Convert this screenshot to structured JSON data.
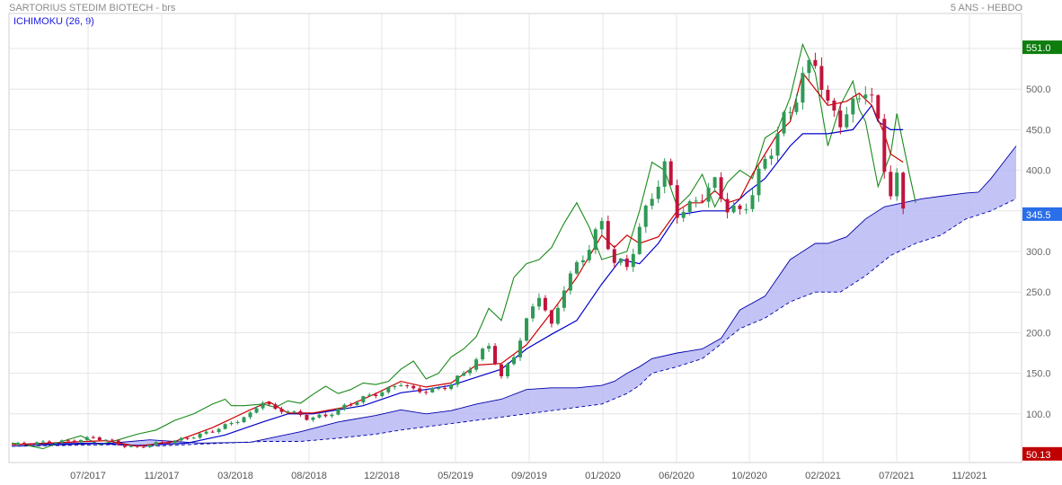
{
  "header": {
    "title": "SARTORIUS STEDIM BIOTECH - brs",
    "period": "5 ANS - HEBDO",
    "indicator": "ICHIMOKU (26, 9)"
  },
  "colors": {
    "tenkan": "#cc0000",
    "kijun": "#0000cc",
    "chikou": "#1a8a1a",
    "cloud": "#b8b8f5",
    "cloud_edge": "#0000aa",
    "candle_up": "#2e9a56",
    "candle_down": "#c0143c",
    "tag_high": "#0e7d0e",
    "tag_last": "#2a6ee8",
    "tag_low": "#c00000",
    "grid": "#e4e4e4"
  },
  "chart_data": {
    "type": "candlestick",
    "x_axis_labels": [
      "07/2017",
      "11/2017",
      "03/2018",
      "08/2018",
      "12/2018",
      "05/2019",
      "09/2019",
      "01/2020",
      "06/2020",
      "10/2020",
      "02/2021",
      "07/2021",
      "11/2021"
    ],
    "y_axis_labels": [
      "100.0",
      "150.0",
      "200.0",
      "250.0",
      "300.0",
      "350.0",
      "400.0",
      "450.0",
      "500.0"
    ],
    "ylim": [
      40,
      560
    ],
    "price_tags": [
      {
        "label": "551.0",
        "value": 551,
        "role": "high"
      },
      {
        "label": "345.5",
        "value": 345.5,
        "role": "last"
      },
      {
        "label": "50.13",
        "value": 50.13,
        "role": "low"
      }
    ],
    "price_close_path": [
      [
        0,
        62
      ],
      [
        5,
        64
      ],
      [
        10,
        67
      ],
      [
        13,
        72
      ],
      [
        16,
        66
      ],
      [
        18,
        60
      ],
      [
        20,
        58
      ],
      [
        23,
        63
      ],
      [
        26,
        67
      ],
      [
        29,
        73
      ],
      [
        32,
        80
      ],
      [
        35,
        88
      ],
      [
        38,
        98
      ],
      [
        40,
        115
      ],
      [
        42,
        104
      ],
      [
        44,
        105
      ],
      [
        47,
        96
      ],
      [
        50,
        98
      ],
      [
        53,
        108
      ],
      [
        56,
        118
      ],
      [
        60,
        130
      ],
      [
        62,
        140
      ],
      [
        64,
        130
      ],
      [
        66,
        130
      ],
      [
        68,
        130
      ],
      [
        70,
        136
      ],
      [
        72,
        148
      ],
      [
        74,
        165
      ],
      [
        76,
        185
      ],
      [
        78,
        145
      ],
      [
        80,
        175
      ],
      [
        82,
        215
      ],
      [
        84,
        250
      ],
      [
        86,
        205
      ],
      [
        88,
        255
      ],
      [
        90,
        278
      ],
      [
        92,
        305
      ],
      [
        94,
        335
      ],
      [
        96,
        290
      ],
      [
        98,
        285
      ],
      [
        100,
        330
      ],
      [
        102,
        370
      ],
      [
        104,
        400
      ],
      [
        106,
        345
      ],
      [
        108,
        350
      ],
      [
        110,
        370
      ],
      [
        112,
        385
      ],
      [
        114,
        360
      ],
      [
        116,
        350
      ],
      [
        118,
        375
      ],
      [
        120,
        410
      ],
      [
        122,
        440
      ],
      [
        124,
        470
      ],
      [
        126,
        510
      ],
      [
        128,
        540
      ],
      [
        130,
        480
      ],
      [
        132,
        470
      ],
      [
        134,
        480
      ],
      [
        136,
        505
      ],
      [
        137,
        485
      ],
      [
        138,
        450
      ],
      [
        139,
        400
      ],
      [
        140,
        370
      ],
      [
        141,
        385
      ],
      [
        142,
        345.5
      ]
    ],
    "tenkan_path": [
      [
        0,
        62
      ],
      [
        9,
        65
      ],
      [
        15,
        67
      ],
      [
        20,
        60
      ],
      [
        26,
        66
      ],
      [
        32,
        83
      ],
      [
        38,
        105
      ],
      [
        41,
        115
      ],
      [
        44,
        101
      ],
      [
        48,
        101
      ],
      [
        53,
        108
      ],
      [
        58,
        125
      ],
      [
        62,
        140
      ],
      [
        66,
        133
      ],
      [
        70,
        138
      ],
      [
        74,
        160
      ],
      [
        78,
        162
      ],
      [
        82,
        185
      ],
      [
        86,
        225
      ],
      [
        90,
        268
      ],
      [
        94,
        320
      ],
      [
        96,
        305
      ],
      [
        98,
        320
      ],
      [
        100,
        310
      ],
      [
        103,
        318
      ],
      [
        106,
        350
      ],
      [
        108,
        360
      ],
      [
        110,
        360
      ],
      [
        112,
        375
      ],
      [
        114,
        360
      ],
      [
        116,
        365
      ],
      [
        118,
        395
      ],
      [
        120,
        420
      ],
      [
        122,
        445
      ],
      [
        124,
        460
      ],
      [
        126,
        520
      ],
      [
        128,
        500
      ],
      [
        130,
        480
      ],
      [
        133,
        485
      ],
      [
        135,
        495
      ],
      [
        137,
        480
      ],
      [
        139,
        445
      ],
      [
        140,
        420
      ],
      [
        142,
        410
      ]
    ],
    "kijun_path": [
      [
        0,
        62
      ],
      [
        13,
        64
      ],
      [
        20,
        61
      ],
      [
        28,
        64
      ],
      [
        34,
        74
      ],
      [
        40,
        90
      ],
      [
        44,
        100
      ],
      [
        48,
        100
      ],
      [
        56,
        110
      ],
      [
        62,
        126
      ],
      [
        66,
        130
      ],
      [
        70,
        135
      ],
      [
        74,
        145
      ],
      [
        78,
        155
      ],
      [
        82,
        180
      ],
      [
        86,
        198
      ],
      [
        90,
        215
      ],
      [
        94,
        260
      ],
      [
        97,
        290
      ],
      [
        100,
        285
      ],
      [
        103,
        310
      ],
      [
        106,
        345
      ],
      [
        110,
        350
      ],
      [
        114,
        350
      ],
      [
        117,
        372
      ],
      [
        120,
        390
      ],
      [
        124,
        430
      ],
      [
        126,
        445
      ],
      [
        130,
        445
      ],
      [
        134,
        450
      ],
      [
        136,
        470
      ],
      [
        137,
        480
      ],
      [
        138,
        460
      ],
      [
        140,
        450
      ],
      [
        142,
        450
      ]
    ],
    "chikou_path": [
      [
        0,
        64
      ],
      [
        2,
        62
      ],
      [
        5,
        57
      ],
      [
        8,
        66
      ],
      [
        11,
        73
      ],
      [
        14,
        62
      ],
      [
        17,
        68
      ],
      [
        20,
        75
      ],
      [
        23,
        80
      ],
      [
        26,
        92
      ],
      [
        29,
        100
      ],
      [
        32,
        112
      ],
      [
        34,
        118
      ],
      [
        35,
        110
      ],
      [
        37,
        110
      ],
      [
        40,
        112
      ],
      [
        42,
        108
      ],
      [
        44,
        116
      ],
      [
        46,
        113
      ],
      [
        48,
        124
      ],
      [
        50,
        134
      ],
      [
        52,
        125
      ],
      [
        54,
        130
      ],
      [
        56,
        138
      ],
      [
        58,
        136
      ],
      [
        60,
        140
      ],
      [
        62,
        155
      ],
      [
        64,
        165
      ],
      [
        66,
        143
      ],
      [
        68,
        150
      ],
      [
        70,
        170
      ],
      [
        72,
        180
      ],
      [
        74,
        195
      ],
      [
        76,
        230
      ],
      [
        78,
        215
      ],
      [
        80,
        268
      ],
      [
        82,
        285
      ],
      [
        84,
        290
      ],
      [
        86,
        305
      ],
      [
        88,
        335
      ],
      [
        90,
        360
      ],
      [
        92,
        330
      ],
      [
        94,
        290
      ],
      [
        96,
        295
      ],
      [
        98,
        300
      ],
      [
        100,
        350
      ],
      [
        102,
        410
      ],
      [
        104,
        400
      ],
      [
        106,
        355
      ],
      [
        108,
        370
      ],
      [
        110,
        395
      ],
      [
        112,
        355
      ],
      [
        114,
        385
      ],
      [
        116,
        400
      ],
      [
        118,
        390
      ],
      [
        120,
        440
      ],
      [
        122,
        450
      ],
      [
        124,
        490
      ],
      [
        126,
        555
      ],
      [
        128,
        520
      ],
      [
        130,
        430
      ],
      [
        132,
        480
      ],
      [
        134,
        510
      ],
      [
        135,
        475
      ],
      [
        136,
        460
      ],
      [
        138,
        380
      ],
      [
        140,
        420
      ],
      [
        141,
        470
      ],
      [
        143,
        395
      ],
      [
        144,
        360
      ]
    ],
    "cloud_upper_path": [
      [
        0,
        60
      ],
      [
        16,
        64
      ],
      [
        22,
        68
      ],
      [
        30,
        64
      ],
      [
        38,
        65
      ],
      [
        46,
        78
      ],
      [
        52,
        90
      ],
      [
        58,
        98
      ],
      [
        62,
        105
      ],
      [
        66,
        100
      ],
      [
        70,
        104
      ],
      [
        74,
        112
      ],
      [
        78,
        118
      ],
      [
        82,
        130
      ],
      [
        86,
        132
      ],
      [
        90,
        132
      ],
      [
        94,
        135
      ],
      [
        96,
        140
      ],
      [
        98,
        150
      ],
      [
        100,
        158
      ],
      [
        102,
        168
      ],
      [
        106,
        175
      ],
      [
        110,
        180
      ],
      [
        113,
        193
      ],
      [
        116,
        228
      ],
      [
        120,
        245
      ],
      [
        124,
        290
      ],
      [
        128,
        310
      ],
      [
        130,
        310
      ],
      [
        133,
        318
      ],
      [
        136,
        340
      ],
      [
        139,
        355
      ],
      [
        142,
        360
      ],
      [
        145,
        365
      ],
      [
        148,
        368
      ],
      [
        152,
        372
      ],
      [
        154,
        373
      ],
      [
        156,
        390
      ],
      [
        158,
        410
      ],
      [
        160,
        430
      ]
    ],
    "cloud_lower_path": [
      [
        0,
        60
      ],
      [
        16,
        62
      ],
      [
        22,
        60
      ],
      [
        28,
        62
      ],
      [
        34,
        64
      ],
      [
        40,
        66
      ],
      [
        46,
        66
      ],
      [
        52,
        70
      ],
      [
        58,
        75
      ],
      [
        62,
        80
      ],
      [
        66,
        84
      ],
      [
        70,
        88
      ],
      [
        74,
        92
      ],
      [
        78,
        96
      ],
      [
        82,
        100
      ],
      [
        86,
        104
      ],
      [
        90,
        108
      ],
      [
        94,
        112
      ],
      [
        98,
        125
      ],
      [
        100,
        135
      ],
      [
        102,
        150
      ],
      [
        106,
        158
      ],
      [
        110,
        168
      ],
      [
        113,
        186
      ],
      [
        116,
        205
      ],
      [
        120,
        218
      ],
      [
        124,
        238
      ],
      [
        128,
        250
      ],
      [
        132,
        250
      ],
      [
        136,
        270
      ],
      [
        140,
        295
      ],
      [
        144,
        310
      ],
      [
        148,
        320
      ],
      [
        152,
        340
      ],
      [
        156,
        350
      ],
      [
        160,
        365
      ]
    ]
  }
}
